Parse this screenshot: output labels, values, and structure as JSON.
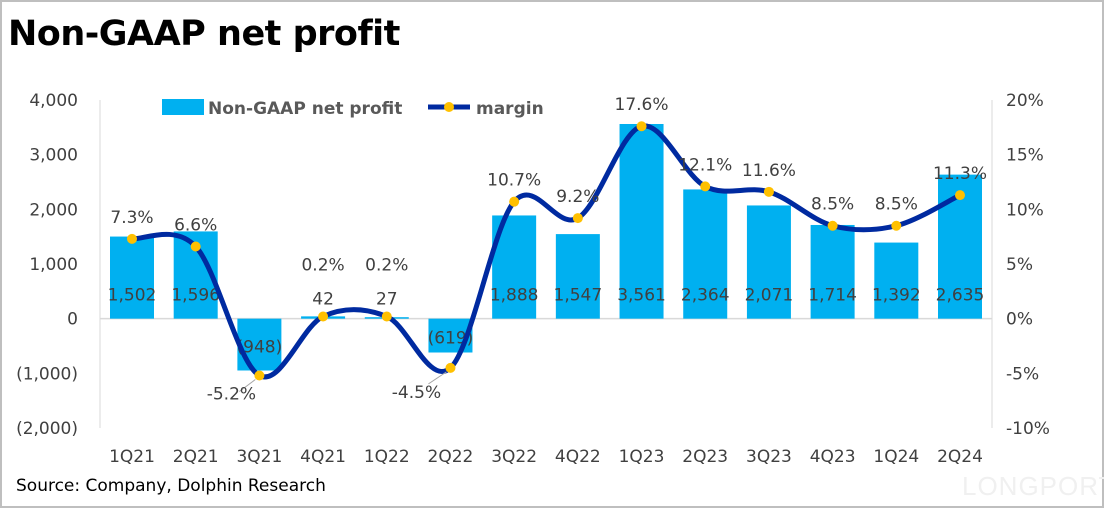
{
  "chart_data": {
    "type": "bar+line",
    "title": "Non-GAAP net profit",
    "categories": [
      "1Q21",
      "2Q21",
      "3Q21",
      "4Q21",
      "1Q22",
      "2Q22",
      "3Q22",
      "4Q22",
      "1Q23",
      "2Q23",
      "3Q23",
      "4Q23",
      "1Q24",
      "2Q24"
    ],
    "series": [
      {
        "name": "Non-GAAP net profit",
        "type": "bar",
        "axis": "left",
        "color": "#00b0f0",
        "values": [
          1502,
          1596,
          -948,
          42,
          27,
          -619,
          1888,
          1547,
          3561,
          2364,
          2071,
          1714,
          1392,
          2635
        ],
        "labels": [
          "1,502",
          "1,596",
          "(948)",
          "42",
          "27",
          "(619)",
          "1,888",
          "1,547",
          "3,561",
          "2,364",
          "2,071",
          "1,714",
          "1,392",
          "2,635"
        ]
      },
      {
        "name": "margin",
        "type": "line",
        "axis": "right",
        "color": "#002aa0",
        "marker_color": "#ffc000",
        "values": [
          7.3,
          6.6,
          -5.2,
          0.2,
          0.2,
          -4.5,
          10.7,
          9.2,
          17.6,
          12.1,
          11.6,
          8.5,
          8.5,
          11.3
        ],
        "labels": [
          "7.3%",
          "6.6%",
          "-5.2%",
          "0.2%",
          "0.2%",
          "-4.5%",
          "10.7%",
          "9.2%",
          "17.6%",
          "12.1%",
          "11.6%",
          "8.5%",
          "8.5%",
          "11.3%"
        ]
      }
    ],
    "left_axis": {
      "ylim": [
        -2000,
        4000
      ],
      "ticks": [
        4000,
        3000,
        2000,
        1000,
        0,
        -1000,
        -2000
      ],
      "tick_labels": [
        "4,000",
        "3,000",
        "2,000",
        "1,000",
        "0",
        "(1,000)",
        "(2,000)"
      ]
    },
    "right_axis": {
      "ylim": [
        -10,
        20
      ],
      "ticks": [
        20,
        15,
        10,
        5,
        0,
        -5,
        -10
      ],
      "tick_labels": [
        "20%",
        "15%",
        "10%",
        "5%",
        "0%",
        "-5%",
        "-10%"
      ]
    },
    "legend_position": "top",
    "grid": false
  },
  "source": "Source: Company, Dolphin Research",
  "watermark": "LONGPORT"
}
